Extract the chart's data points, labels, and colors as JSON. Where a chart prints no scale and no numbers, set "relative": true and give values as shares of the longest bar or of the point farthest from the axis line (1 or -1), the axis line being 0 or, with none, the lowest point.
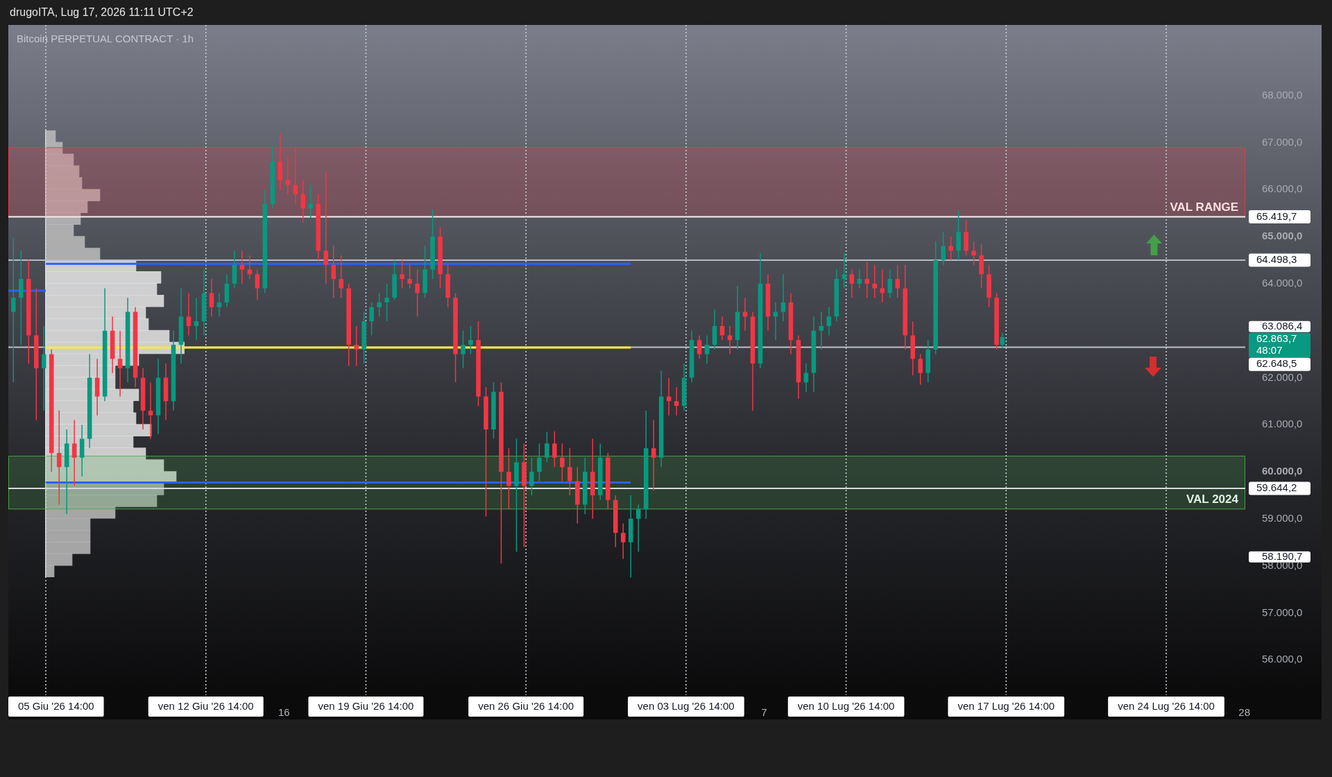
{
  "chart_data": [
    {
      "type": "candlestick",
      "title": "Bitcoin PERPETUAL CONTRACT · 1h",
      "annotations": [
        "drugoITA, Lug 17, 2026 11:11 UTC+2",
        "62.863,7",
        "48:07"
      ],
      "xlim": [
        "2026-06-03T22:40",
        "2026-07-28T01:00"
      ],
      "xticks": [
        {
          "value": "2026-06-16",
          "label": "16"
        },
        {
          "value": "2026-07-07",
          "label": "7"
        },
        {
          "value": "2026-07-28",
          "label": "28"
        }
      ],
      "ylim": [
        55250,
        69500
      ],
      "yticks": [
        {
          "value": 56000,
          "label": "56.000,0"
        },
        {
          "value": 57000,
          "label": "57.000,0"
        },
        {
          "value": 58000,
          "label": "58.000,0"
        },
        {
          "value": 58190.7,
          "label": "58.190,7"
        },
        {
          "value": 59000,
          "label": "59.000,0"
        },
        {
          "value": 60000,
          "label": "60.000,0"
        },
        {
          "value": 61000,
          "label": "61.000,0"
        },
        {
          "value": 62000,
          "label": "62.000,0"
        },
        {
          "value": 63086.4,
          "label": "63.086,4"
        },
        {
          "value": 64000,
          "label": "64.000,0"
        },
        {
          "value": 65000,
          "label": "65.000,0"
        },
        {
          "value": 66000,
          "label": "66.000,0"
        },
        {
          "value": 67000,
          "label": "67.000,0"
        },
        {
          "value": 68000,
          "label": "68.000,0"
        }
      ],
      "bands": [
        {
          "axis": "y",
          "from": 65419.7,
          "to": 66900,
          "label": "VAL RANGE",
          "color": "#f23645"
        },
        {
          "axis": "y",
          "from": 59200,
          "to": 60340,
          "label": "VAL 2024",
          "color": "#4caf50"
        }
      ],
      "ref_lines": [
        {
          "axis": "y",
          "value": 65419.7,
          "label": "65.419,7",
          "color": "#f2f2f2"
        },
        {
          "axis": "y",
          "value": 64498.3,
          "label": "64.498,3",
          "color": "#b8bbc3"
        },
        {
          "axis": "y",
          "value": 62648.5,
          "label": "62.648,5",
          "color": "#c0c3ca"
        },
        {
          "axis": "y",
          "value": 59644.2,
          "label": "59.644,2",
          "color": "#d8dade"
        },
        {
          "axis": "x",
          "value": "2026-06-05T14:00",
          "label": "05 Giu '26 14:00",
          "color": "#d1d4dc",
          "line_style": "dotted"
        },
        {
          "axis": "x",
          "value": "2026-06-12T14:00",
          "label": "ven 12 Giu '26 14:00",
          "color": "#d1d4dc",
          "line_style": "dotted"
        },
        {
          "axis": "x",
          "value": "2026-06-19T14:00",
          "label": "ven 19 Giu '26 14:00",
          "color": "#d1d4dc",
          "line_style": "dotted"
        },
        {
          "axis": "x",
          "value": "2026-06-26T14:00",
          "label": "ven 26 Giu '26 14:00",
          "color": "#d1d4dc",
          "line_style": "dotted"
        },
        {
          "axis": "x",
          "value": "2026-07-03T14:00",
          "label": "ven 03 Lug '26 14:00",
          "color": "#d1d4dc",
          "line_style": "dotted"
        },
        {
          "axis": "x",
          "value": "2026-07-10T14:00",
          "label": "ven 10 Lug '26 14:00",
          "color": "#d1d4dc",
          "line_style": "dotted"
        },
        {
          "axis": "x",
          "value": "2026-07-17T14:00",
          "label": "ven 17 Lug '26 14:00",
          "color": "#d1d4dc",
          "line_style": "dotted"
        },
        {
          "axis": "x",
          "value": "2026-07-24T14:00",
          "label": "ven 24 Lug '26 14:00",
          "color": "#d1d4dc",
          "line_style": "dotted"
        }
      ],
      "series": [
        {
          "type": "candlestick",
          "x": [
            "2026-06-04T04:00",
            "2026-06-04T12:00",
            "2026-06-04T20:00",
            "2026-06-05T04:00",
            "2026-06-05T12:00",
            "2026-06-05T20:00",
            "2026-06-06T04:00",
            "2026-06-06T12:00",
            "2026-06-06T20:00",
            "2026-06-07T04:00",
            "2026-06-07T12:00",
            "2026-06-07T20:00",
            "2026-06-08T04:00",
            "2026-06-08T12:00",
            "2026-06-08T20:00",
            "2026-06-09T04:00",
            "2026-06-09T12:00",
            "2026-06-09T20:00",
            "2026-06-10T04:00",
            "2026-06-10T12:00",
            "2026-06-10T20:00",
            "2026-06-11T04:00",
            "2026-06-11T12:00",
            "2026-06-11T20:00",
            "2026-06-12T04:00",
            "2026-06-12T12:00",
            "2026-06-12T20:00",
            "2026-06-13T04:00",
            "2026-06-13T12:00",
            "2026-06-13T20:00",
            "2026-06-14T04:00",
            "2026-06-14T12:00",
            "2026-06-14T20:00",
            "2026-06-15T04:00",
            "2026-06-15T12:00",
            "2026-06-15T20:00",
            "2026-06-16T04:00",
            "2026-06-16T12:00",
            "2026-06-16T20:00",
            "2026-06-17T04:00",
            "2026-06-17T12:00",
            "2026-06-17T20:00",
            "2026-06-18T04:00",
            "2026-06-18T12:00",
            "2026-06-18T20:00",
            "2026-06-19T04:00",
            "2026-06-19T12:00",
            "2026-06-19T20:00",
            "2026-06-20T04:00",
            "2026-06-20T12:00",
            "2026-06-20T20:00",
            "2026-06-21T04:00",
            "2026-06-21T12:00",
            "2026-06-21T20:00",
            "2026-06-22T04:00",
            "2026-06-22T12:00",
            "2026-06-22T20:00",
            "2026-06-23T04:00",
            "2026-06-23T12:00",
            "2026-06-23T20:00",
            "2026-06-24T04:00",
            "2026-06-24T12:00",
            "2026-06-24T20:00",
            "2026-06-25T04:00",
            "2026-06-25T12:00",
            "2026-06-25T20:00",
            "2026-06-26T04:00",
            "2026-06-26T12:00",
            "2026-06-26T20:00",
            "2026-06-27T04:00",
            "2026-06-27T12:00",
            "2026-06-27T20:00",
            "2026-06-28T04:00",
            "2026-06-28T12:00",
            "2026-06-28T20:00",
            "2026-06-29T04:00",
            "2026-06-29T12:00",
            "2026-06-29T20:00",
            "2026-06-30T04:00",
            "2026-06-30T12:00",
            "2026-06-30T20:00",
            "2026-07-01T04:00",
            "2026-07-01T12:00",
            "2026-07-01T20:00",
            "2026-07-02T04:00",
            "2026-07-02T12:00",
            "2026-07-02T20:00",
            "2026-07-03T04:00",
            "2026-07-03T12:00",
            "2026-07-03T20:00",
            "2026-07-04T04:00",
            "2026-07-04T12:00",
            "2026-07-04T20:00",
            "2026-07-05T04:00",
            "2026-07-05T12:00",
            "2026-07-05T20:00",
            "2026-07-06T04:00",
            "2026-07-06T12:00",
            "2026-07-06T20:00",
            "2026-07-07T04:00",
            "2026-07-07T12:00",
            "2026-07-07T20:00",
            "2026-07-08T04:00",
            "2026-07-08T12:00",
            "2026-07-08T20:00",
            "2026-07-09T04:00",
            "2026-07-09T12:00",
            "2026-07-09T20:00",
            "2026-07-10T04:00",
            "2026-07-10T12:00",
            "2026-07-10T20:00",
            "2026-07-11T04:00",
            "2026-07-11T12:00",
            "2026-07-11T20:00",
            "2026-07-12T04:00",
            "2026-07-12T12:00",
            "2026-07-12T20:00",
            "2026-07-13T04:00",
            "2026-07-13T12:00",
            "2026-07-13T20:00",
            "2026-07-14T04:00",
            "2026-07-14T12:00",
            "2026-07-14T20:00",
            "2026-07-15T04:00",
            "2026-07-15T12:00",
            "2026-07-15T20:00",
            "2026-07-16T04:00",
            "2026-07-16T12:00",
            "2026-07-16T20:00",
            "2026-07-17T04:00",
            "2026-07-17T10:00"
          ],
          "ohlc": [
            [
              63400,
              64970,
              61900,
              63700
            ],
            [
              63700,
              64700,
              62700,
              64100
            ],
            [
              64100,
              64500,
              62300,
              62900
            ],
            [
              62900,
              63900,
              61100,
              62200
            ],
            [
              62200,
              63100,
              61300,
              62500
            ],
            [
              62500,
              62600,
              60000,
              60400
            ],
            [
              60400,
              61300,
              59300,
              60100
            ],
            [
              60100,
              60900,
              59100,
              60600
            ],
            [
              60600,
              61100,
              59700,
              60300
            ],
            [
              60300,
              61000,
              59900,
              60700
            ],
            [
              60700,
              62500,
              60500,
              62000
            ],
            [
              62000,
              62400,
              61200,
              61600
            ],
            [
              61600,
              63900,
              61500,
              63000
            ],
            [
              63000,
              63300,
              62100,
              62400
            ],
            [
              62400,
              63000,
              61600,
              62200
            ],
            [
              62200,
              63700,
              61900,
              63400
            ],
            [
              63400,
              63500,
              61800,
              62000
            ],
            [
              62000,
              62200,
              60900,
              61300
            ],
            [
              61300,
              61900,
              60700,
              61200
            ],
            [
              61200,
              62400,
              60800,
              62000
            ],
            [
              62000,
              62300,
              61100,
              61500
            ],
            [
              61500,
              63000,
              61300,
              62700
            ],
            [
              62700,
              63900,
              62300,
              63300
            ],
            [
              63300,
              63800,
              62900,
              63100
            ],
            [
              63100,
              63700,
              62800,
              63200
            ],
            [
              63200,
              64300,
              62900,
              63800
            ],
            [
              63800,
              64100,
              63300,
              63500
            ],
            [
              63500,
              63800,
              63300,
              63600
            ],
            [
              63600,
              64200,
              63500,
              64000
            ],
            [
              64000,
              64700,
              63900,
              64400
            ],
            [
              64400,
              64700,
              64000,
              64300
            ],
            [
              64300,
              64600,
              64100,
              64200
            ],
            [
              64200,
              64300,
              63650,
              63900
            ],
            [
              63900,
              66000,
              63800,
              65700
            ],
            [
              65700,
              66900,
              65600,
              66600
            ],
            [
              66600,
              67200,
              66000,
              66200
            ],
            [
              66200,
              66700,
              65900,
              66100
            ],
            [
              66100,
              66900,
              65700,
              65900
            ],
            [
              65900,
              66200,
              65300,
              65600
            ],
            [
              65600,
              66100,
              65400,
              65700
            ],
            [
              65700,
              65900,
              64500,
              64700
            ],
            [
              64700,
              66380,
              64000,
              64400
            ],
            [
              64400,
              64800,
              63700,
              64100
            ],
            [
              64100,
              64600,
              63700,
              63900
            ],
            [
              63900,
              64000,
              62250,
              62700
            ],
            [
              62700,
              63100,
              62250,
              62600
            ],
            [
              62600,
              63400,
              62300,
              63200
            ],
            [
              63200,
              63600,
              62900,
              63500
            ],
            [
              63500,
              63800,
              63300,
              63600
            ],
            [
              63600,
              64000,
              63200,
              63700
            ],
            [
              63700,
              64500,
              63650,
              64200
            ],
            [
              64200,
              64500,
              63900,
              64100
            ],
            [
              64100,
              64400,
              63900,
              64000
            ],
            [
              64000,
              64300,
              63300,
              63800
            ],
            [
              63800,
              64800,
              63700,
              64300
            ],
            [
              64300,
              65580,
              64100,
              65000
            ],
            [
              65000,
              65200,
              63900,
              64200
            ],
            [
              64200,
              64400,
              63500,
              63700
            ],
            [
              63700,
              63800,
              61900,
              62500
            ],
            [
              62500,
              63000,
              62200,
              62700
            ],
            [
              62700,
              63100,
              62500,
              62800
            ],
            [
              62800,
              63200,
              61400,
              61600
            ],
            [
              61600,
              61800,
              59050,
              60900
            ],
            [
              60900,
              61900,
              60700,
              61700
            ],
            [
              61700,
              61900,
              58050,
              60000
            ],
            [
              60000,
              60500,
              59200,
              59700
            ],
            [
              59700,
              60700,
              58300,
              60200
            ],
            [
              60200,
              60600,
              58400,
              59700
            ],
            [
              59700,
              60300,
              59500,
              60000
            ],
            [
              60000,
              60600,
              59800,
              60300
            ],
            [
              60300,
              60850,
              60200,
              60600
            ],
            [
              60600,
              60860,
              60100,
              60300
            ],
            [
              60300,
              60600,
              59800,
              60100
            ],
            [
              60100,
              60500,
              59500,
              59800
            ],
            [
              59800,
              60100,
              58900,
              59300
            ],
            [
              59300,
              60300,
              59100,
              60000
            ],
            [
              60000,
              60700,
              59000,
              59500
            ],
            [
              59500,
              60600,
              59400,
              60300
            ],
            [
              60300,
              60400,
              59200,
              59400
            ],
            [
              59400,
              59500,
              58400,
              58700
            ],
            [
              58700,
              58900,
              58150,
              58500
            ],
            [
              58500,
              59500,
              57750,
              59000
            ],
            [
              59000,
              59300,
              58300,
              59200
            ],
            [
              59200,
              61300,
              59000,
              60500
            ],
            [
              60500,
              61100,
              59600,
              60300
            ],
            [
              60300,
              62150,
              60100,
              61600
            ],
            [
              61600,
              62000,
              61200,
              61500
            ],
            [
              61500,
              61800,
              61200,
              61400
            ],
            [
              61400,
              62300,
              61300,
              62000
            ],
            [
              62000,
              63000,
              61900,
              62800
            ],
            [
              62800,
              62900,
              62400,
              62500
            ],
            [
              62500,
              62900,
              62300,
              62700
            ],
            [
              62700,
              63450,
              62600,
              63100
            ],
            [
              63100,
              63300,
              62800,
              62900
            ],
            [
              62900,
              63100,
              62500,
              62800
            ],
            [
              62800,
              63950,
              62600,
              63400
            ],
            [
              63400,
              63700,
              63000,
              63300
            ],
            [
              63300,
              63400,
              61300,
              62300
            ],
            [
              62300,
              64650,
              62200,
              64000
            ],
            [
              64000,
              64200,
              63000,
              63300
            ],
            [
              63300,
              63600,
              62800,
              63400
            ],
            [
              63400,
              64200,
              63200,
              63600
            ],
            [
              63600,
              63800,
              62500,
              62800
            ],
            [
              62800,
              62900,
              61550,
              61900
            ],
            [
              61900,
              62300,
              61700,
              62100
            ],
            [
              62100,
              63300,
              61700,
              63000
            ],
            [
              63000,
              63400,
              62600,
              63100
            ],
            [
              63100,
              63500,
              62900,
              63300
            ],
            [
              63300,
              64300,
              63200,
              64100
            ],
            [
              64100,
              64650,
              63900,
              64200
            ],
            [
              64200,
              64300,
              63700,
              64000
            ],
            [
              64000,
              64300,
              63900,
              64100
            ],
            [
              64100,
              64460,
              63700,
              64000
            ],
            [
              64000,
              64400,
              63700,
              63900
            ],
            [
              63900,
              64300,
              63600,
              63800
            ],
            [
              63800,
              64300,
              63700,
              64100
            ],
            [
              64100,
              64400,
              63700,
              63900
            ],
            [
              63900,
              64400,
              62600,
              62900
            ],
            [
              62900,
              63200,
              62050,
              62400
            ],
            [
              62400,
              62500,
              61850,
              62100
            ],
            [
              62100,
              62800,
              61900,
              62600
            ],
            [
              62600,
              64900,
              62500,
              64500
            ],
            [
              64500,
              65100,
              64400,
              64800
            ],
            [
              64800,
              65000,
              64500,
              64700
            ],
            [
              64700,
              65550,
              64500,
              65100
            ],
            [
              65100,
              65350,
              64600,
              64700
            ],
            [
              64700,
              64900,
              64400,
              64600
            ],
            [
              64600,
              64850,
              63900,
              64200
            ],
            [
              64200,
              64400,
              63500,
              63700
            ],
            [
              63700,
              63800,
              62600,
              62700
            ],
            [
              62700,
              62950,
              62620,
              62863.7
            ]
          ],
          "colors": [
            "#089981",
            "#089981",
            "#f23645",
            "#f23645",
            "#089981",
            "#f23645",
            "#f23645",
            "#089981",
            "#f23645",
            "#089981",
            "#089981",
            "#f23645",
            "#089981",
            "#f23645",
            "#f23645",
            "#089981",
            "#f23645",
            "#f23645",
            "#f23645",
            "#089981",
            "#f23645",
            "#089981",
            "#089981",
            "#f23645",
            "#089981",
            "#089981",
            "#f23645",
            "#089981",
            "#089981",
            "#089981",
            "#f23645",
            "#f23645",
            "#f23645",
            "#089981",
            "#089981",
            "#f23645",
            "#f23645",
            "#f23645",
            "#f23645",
            "#089981",
            "#f23645",
            "#f23645",
            "#f23645",
            "#f23645",
            "#f23645",
            "#f23645",
            "#089981",
            "#089981",
            "#089981",
            "#089981",
            "#089981",
            "#f23645",
            "#f23645",
            "#f23645",
            "#089981",
            "#089981",
            "#f23645",
            "#f23645",
            "#f23645",
            "#089981",
            "#089981",
            "#f23645",
            "#f23645",
            "#089981",
            "#f23645",
            "#f23645",
            "#089981",
            "#f23645",
            "#089981",
            "#089981",
            "#089981",
            "#f23645",
            "#f23645",
            "#f23645",
            "#f23645",
            "#089981",
            "#f23645",
            "#089981",
            "#f23645",
            "#f23645",
            "#f23645",
            "#089981",
            "#089981",
            "#089981",
            "#f23645",
            "#089981",
            "#f23645",
            "#f23645",
            "#089981",
            "#089981",
            "#f23645",
            "#089981",
            "#089981",
            "#f23645",
            "#f23645",
            "#089981",
            "#f23645",
            "#f23645",
            "#089981",
            "#f23645",
            "#089981",
            "#089981",
            "#f23645",
            "#f23645",
            "#089981",
            "#089981",
            "#089981",
            "#089981",
            "#089981",
            "#089981",
            "#f23645",
            "#089981",
            "#f23645",
            "#f23645",
            "#f23645",
            "#089981",
            "#f23645",
            "#f23645",
            "#f23645",
            "#f23645",
            "#089981",
            "#089981",
            "#089981",
            "#f23645",
            "#089981",
            "#f23645",
            "#f23645",
            "#f23645",
            "#f23645",
            "#f23645",
            "#089981"
          ]
        },
        {
          "type": "line",
          "x": [
            "2026-06-05T14:00",
            "2026-07-01T04:00"
          ],
          "values": [
            64420,
            64420
          ],
          "color": "#2962ff"
        },
        {
          "type": "line",
          "x": [
            "2026-06-05T14:00",
            "2026-07-01T04:00"
          ],
          "values": [
            62640,
            62640
          ],
          "color": "#ffeb3b"
        },
        {
          "type": "line",
          "x": [
            "2026-06-05T14:00",
            "2026-07-01T04:00"
          ],
          "values": [
            59770,
            59770
          ],
          "color": "#2962ff"
        },
        {
          "type": "line",
          "x": [
            "2026-06-03T22:40",
            "2026-06-05T14:00"
          ],
          "values": [
            63850,
            63850
          ],
          "color": "#2962ff"
        }
      ]
    },
    {
      "type": "bar",
      "orientation": "horizontal",
      "relative": true,
      "categories": [
        null,
        null,
        null,
        null,
        null,
        null,
        null,
        null,
        null,
        null,
        null,
        null,
        null,
        null,
        null,
        null,
        null,
        null,
        null,
        null,
        null,
        null,
        null,
        null,
        null,
        null,
        null,
        null,
        null,
        null,
        null,
        null,
        null,
        null,
        null,
        null,
        null,
        null
      ],
      "values": [
        0.07,
        0.12,
        0.2,
        0.24,
        0.26,
        0.39,
        0.3,
        0.25,
        0.2,
        0.28,
        0.39,
        0.65,
        0.83,
        0.8,
        0.85,
        0.72,
        0.74,
        0.89,
        1,
        0.67,
        0.5,
        0.5,
        0.67,
        0.63,
        0.65,
        0.76,
        0.63,
        0.72,
        0.85,
        0.94,
        0.85,
        0.8,
        0.5,
        0.32,
        0.32,
        0.32,
        0.19,
        0.06
      ],
      "colors": [
        "#bdbdbd",
        "#bdbdbd",
        "#bdbdbd",
        "#bdbdbd",
        "#bdbdbd",
        "#bdbdbd",
        "#bdbdbd",
        "#bdbdbd",
        "#bdbdbd",
        "#bdbdbd",
        "#bdbdbd",
        "#e8e8e8",
        "#e8e8e8",
        "#e8e8e8",
        "#e8e8e8",
        "#e8e8e8",
        "#e8e8e8",
        "#e8e8e8",
        "#e8e8e8",
        "#e8e8e8",
        "#e8e8e8",
        "#e8e8e8",
        "#e8e8e8",
        "#e8e8e8",
        "#e8e8e8",
        "#e8e8e8",
        "#e8e8e8",
        "#e8e8e8",
        "#e8e8e8",
        "#e8e8e8",
        "#bdbdbd",
        "#bdbdbd",
        "#bdbdbd",
        "#bdbdbd",
        "#bdbdbd",
        "#bdbdbd",
        "#bdbdbd",
        "#bdbdbd"
      ]
    }
  ]
}
